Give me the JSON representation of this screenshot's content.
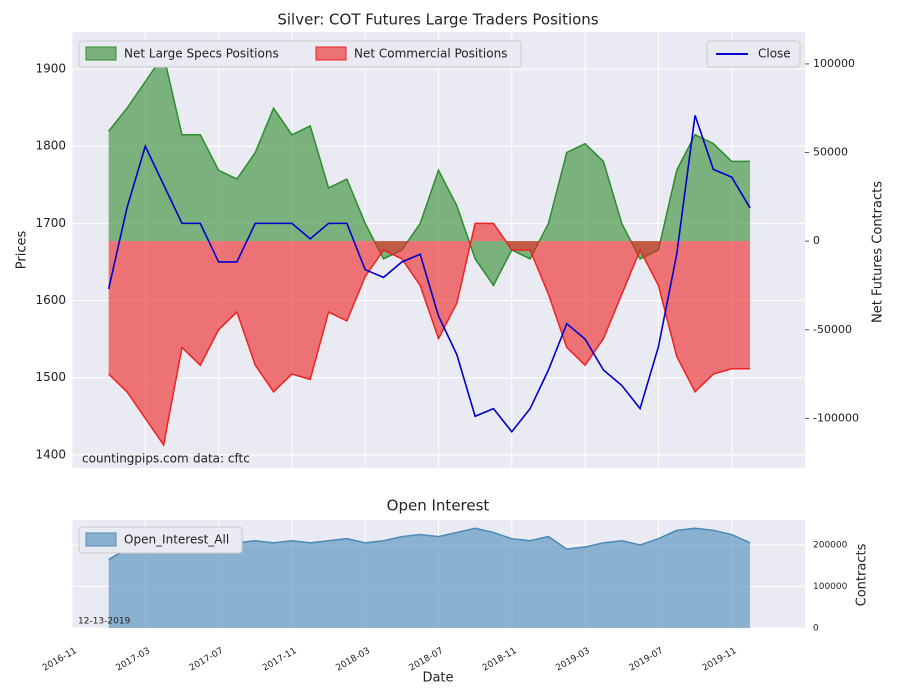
{
  "chart_data": [
    {
      "type": "line",
      "title": "Silver: COT Futures Large Traders Positions",
      "ylabel": "Prices",
      "y2label": "Net Futures Contracts",
      "annotations": [
        "countingpips.com",
        "data: cftc"
      ],
      "x": [
        "2017-01",
        "2017-02",
        "2017-03",
        "2017-04",
        "2017-05",
        "2017-06",
        "2017-07",
        "2017-08",
        "2017-09",
        "2017-10",
        "2017-11",
        "2017-12",
        "2018-01",
        "2018-02",
        "2018-03",
        "2018-04",
        "2018-05",
        "2018-06",
        "2018-07",
        "2018-08",
        "2018-09",
        "2018-10",
        "2018-11",
        "2018-12",
        "2019-01",
        "2019-02",
        "2019-03",
        "2019-04",
        "2019-05",
        "2019-06",
        "2019-07",
        "2019-08",
        "2019-09",
        "2019-10",
        "2019-11",
        "2019-12"
      ],
      "series": [
        {
          "name": "Net Large Specs Positions",
          "type": "area",
          "axis": "y2",
          "color": "#2e8b2e",
          "values": [
            62000,
            75000,
            90000,
            105000,
            60000,
            60000,
            40000,
            35000,
            50000,
            75000,
            60000,
            65000,
            30000,
            35000,
            10000,
            -10000,
            -5000,
            10000,
            40000,
            20000,
            -10000,
            -25000,
            -5000,
            -10000,
            10000,
            50000,
            55000,
            45000,
            10000,
            -10000,
            -5000,
            40000,
            60000,
            55000,
            45000,
            45000
          ]
        },
        {
          "name": "Net Commercial Positions",
          "type": "area",
          "axis": "y2",
          "color": "#ee2222",
          "values": [
            -75000,
            -85000,
            -100000,
            -115000,
            -60000,
            -70000,
            -50000,
            -40000,
            -70000,
            -85000,
            -75000,
            -78000,
            -40000,
            -45000,
            -20000,
            -5000,
            -10000,
            -25000,
            -55000,
            -35000,
            10000,
            10000,
            -5000,
            -5000,
            -30000,
            -60000,
            -70000,
            -55000,
            -30000,
            -5000,
            -25000,
            -65000,
            -85000,
            -75000,
            -72000,
            -72000
          ]
        },
        {
          "name": "Close",
          "type": "line",
          "color": "#0000cc",
          "values": [
            1615,
            1720,
            1800,
            1750,
            1700,
            1700,
            1650,
            1650,
            1700,
            1700,
            1700,
            1680,
            1700,
            1700,
            1640,
            1630,
            1650,
            1660,
            1580,
            1530,
            1450,
            1460,
            1430,
            1460,
            1510,
            1570,
            1550,
            1510,
            1490,
            1460,
            1540,
            1660,
            1840,
            1770,
            1760,
            1720
          ]
        }
      ],
      "xlim": [
        "2016-11",
        "2020-03"
      ],
      "xticks": [
        "2016-11",
        "2017-03",
        "2017-07",
        "2017-11",
        "2018-03",
        "2018-07",
        "2018-11",
        "2019-03",
        "2019-07",
        "2019-11"
      ],
      "ylim": [
        1383,
        1948
      ],
      "yticks": [
        1400,
        1500,
        1600,
        1700,
        1800,
        1900
      ],
      "y2lim": [
        -128000,
        118000
      ],
      "y2ticks": [
        -100000,
        -50000,
        0,
        50000,
        100000
      ],
      "grid": true
    },
    {
      "type": "area",
      "title": "Open Interest",
      "xlabel": "Date",
      "y2label": "Contracts",
      "annotations": [
        "12-13-2019"
      ],
      "x": [
        "2017-01",
        "2017-02",
        "2017-03",
        "2017-04",
        "2017-05",
        "2017-06",
        "2017-07",
        "2017-08",
        "2017-09",
        "2017-10",
        "2017-11",
        "2017-12",
        "2018-01",
        "2018-02",
        "2018-03",
        "2018-04",
        "2018-05",
        "2018-06",
        "2018-07",
        "2018-08",
        "2018-09",
        "2018-10",
        "2018-11",
        "2018-12",
        "2019-01",
        "2019-02",
        "2019-03",
        "2019-04",
        "2019-05",
        "2019-06",
        "2019-07",
        "2019-08",
        "2019-09",
        "2019-10",
        "2019-11",
        "2019-12"
      ],
      "series": [
        {
          "name": "Open_Interest_All",
          "type": "area",
          "axis": "y2",
          "color": "#4a8ab8",
          "values": [
            165000,
            190000,
            200000,
            205000,
            210000,
            200000,
            205000,
            205000,
            210000,
            205000,
            210000,
            205000,
            210000,
            215000,
            205000,
            210000,
            220000,
            225000,
            220000,
            230000,
            240000,
            230000,
            215000,
            210000,
            220000,
            190000,
            195000,
            205000,
            210000,
            200000,
            215000,
            235000,
            240000,
            235000,
            225000,
            205000
          ]
        }
      ],
      "xlim": [
        "2016-11",
        "2020-03"
      ],
      "xticks": [
        "2016-11",
        "2017-03",
        "2017-07",
        "2017-11",
        "2018-03",
        "2018-07",
        "2018-11",
        "2019-03",
        "2019-07",
        "2019-11"
      ],
      "y2lim": [
        0,
        260000
      ],
      "y2ticks": [
        0,
        100000,
        200000
      ],
      "grid": true
    }
  ]
}
